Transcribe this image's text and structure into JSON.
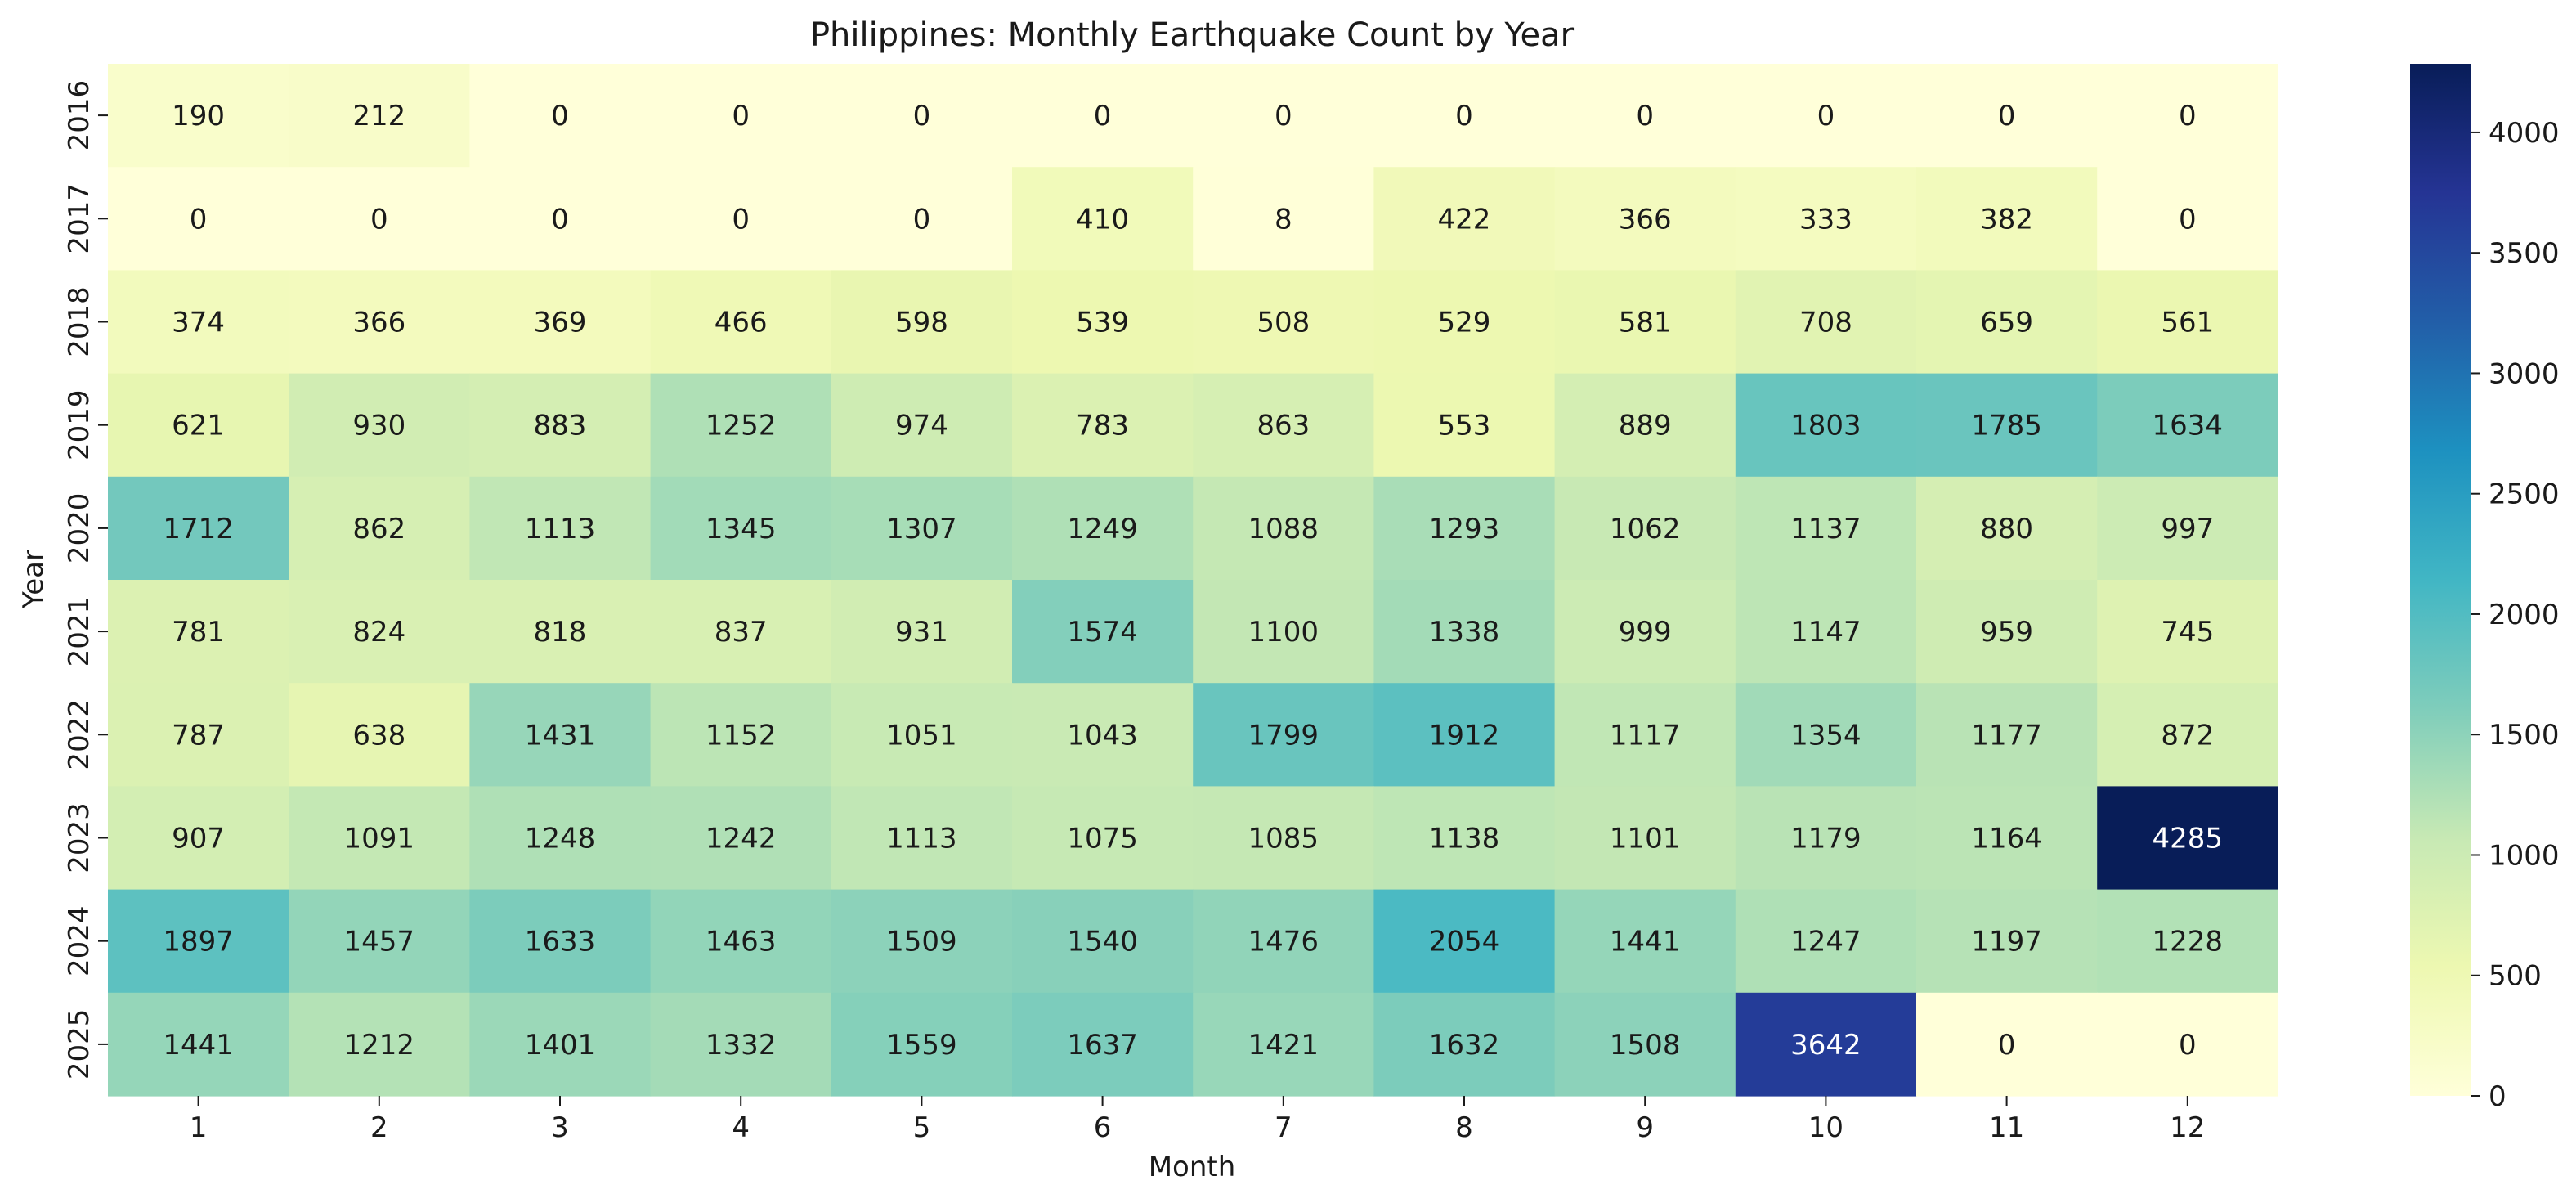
{
  "chart_data": {
    "type": "heatmap",
    "title": "Philippines: Monthly Earthquake Count by Year",
    "xlabel": "Month",
    "ylabel": "Year",
    "x_categories": [
      "1",
      "2",
      "3",
      "4",
      "5",
      "6",
      "7",
      "8",
      "9",
      "10",
      "11",
      "12"
    ],
    "y_categories": [
      "2016",
      "2017",
      "2018",
      "2019",
      "2020",
      "2021",
      "2022",
      "2023",
      "2024",
      "2025"
    ],
    "values": [
      [
        190,
        212,
        0,
        0,
        0,
        0,
        0,
        0,
        0,
        0,
        0,
        0
      ],
      [
        0,
        0,
        0,
        0,
        0,
        410,
        8,
        422,
        366,
        333,
        382,
        0
      ],
      [
        374,
        366,
        369,
        466,
        598,
        539,
        508,
        529,
        581,
        708,
        659,
        561
      ],
      [
        621,
        930,
        883,
        1252,
        974,
        783,
        863,
        553,
        889,
        1803,
        1785,
        1634
      ],
      [
        1712,
        862,
        1113,
        1345,
        1307,
        1249,
        1088,
        1293,
        1062,
        1137,
        880,
        997
      ],
      [
        781,
        824,
        818,
        837,
        931,
        1574,
        1100,
        1338,
        999,
        1147,
        959,
        745
      ],
      [
        787,
        638,
        1431,
        1152,
        1051,
        1043,
        1799,
        1912,
        1117,
        1354,
        1177,
        872
      ],
      [
        907,
        1091,
        1248,
        1242,
        1113,
        1075,
        1085,
        1138,
        1101,
        1179,
        1164,
        4285
      ],
      [
        1897,
        1457,
        1633,
        1463,
        1509,
        1540,
        1476,
        2054,
        1441,
        1247,
        1197,
        1228
      ],
      [
        1441,
        1212,
        1401,
        1332,
        1559,
        1637,
        1421,
        1632,
        1508,
        3642,
        0,
        0
      ]
    ],
    "colorbar": {
      "min": 0,
      "max": 4285,
      "ticks": [
        "0",
        "500",
        "1000",
        "1500",
        "2000",
        "2500",
        "3000",
        "3500",
        "4000"
      ],
      "colormap": "YlGnBu"
    },
    "colors": {
      "scale": [
        "#ffffd9",
        "#edf8b1",
        "#c7e9b4",
        "#7fcdbb",
        "#41b6c4",
        "#1d91c0",
        "#225ea8",
        "#253494",
        "#081d58"
      ],
      "text_dark": "#1a1a1a",
      "text_light": "#ffffff"
    }
  }
}
